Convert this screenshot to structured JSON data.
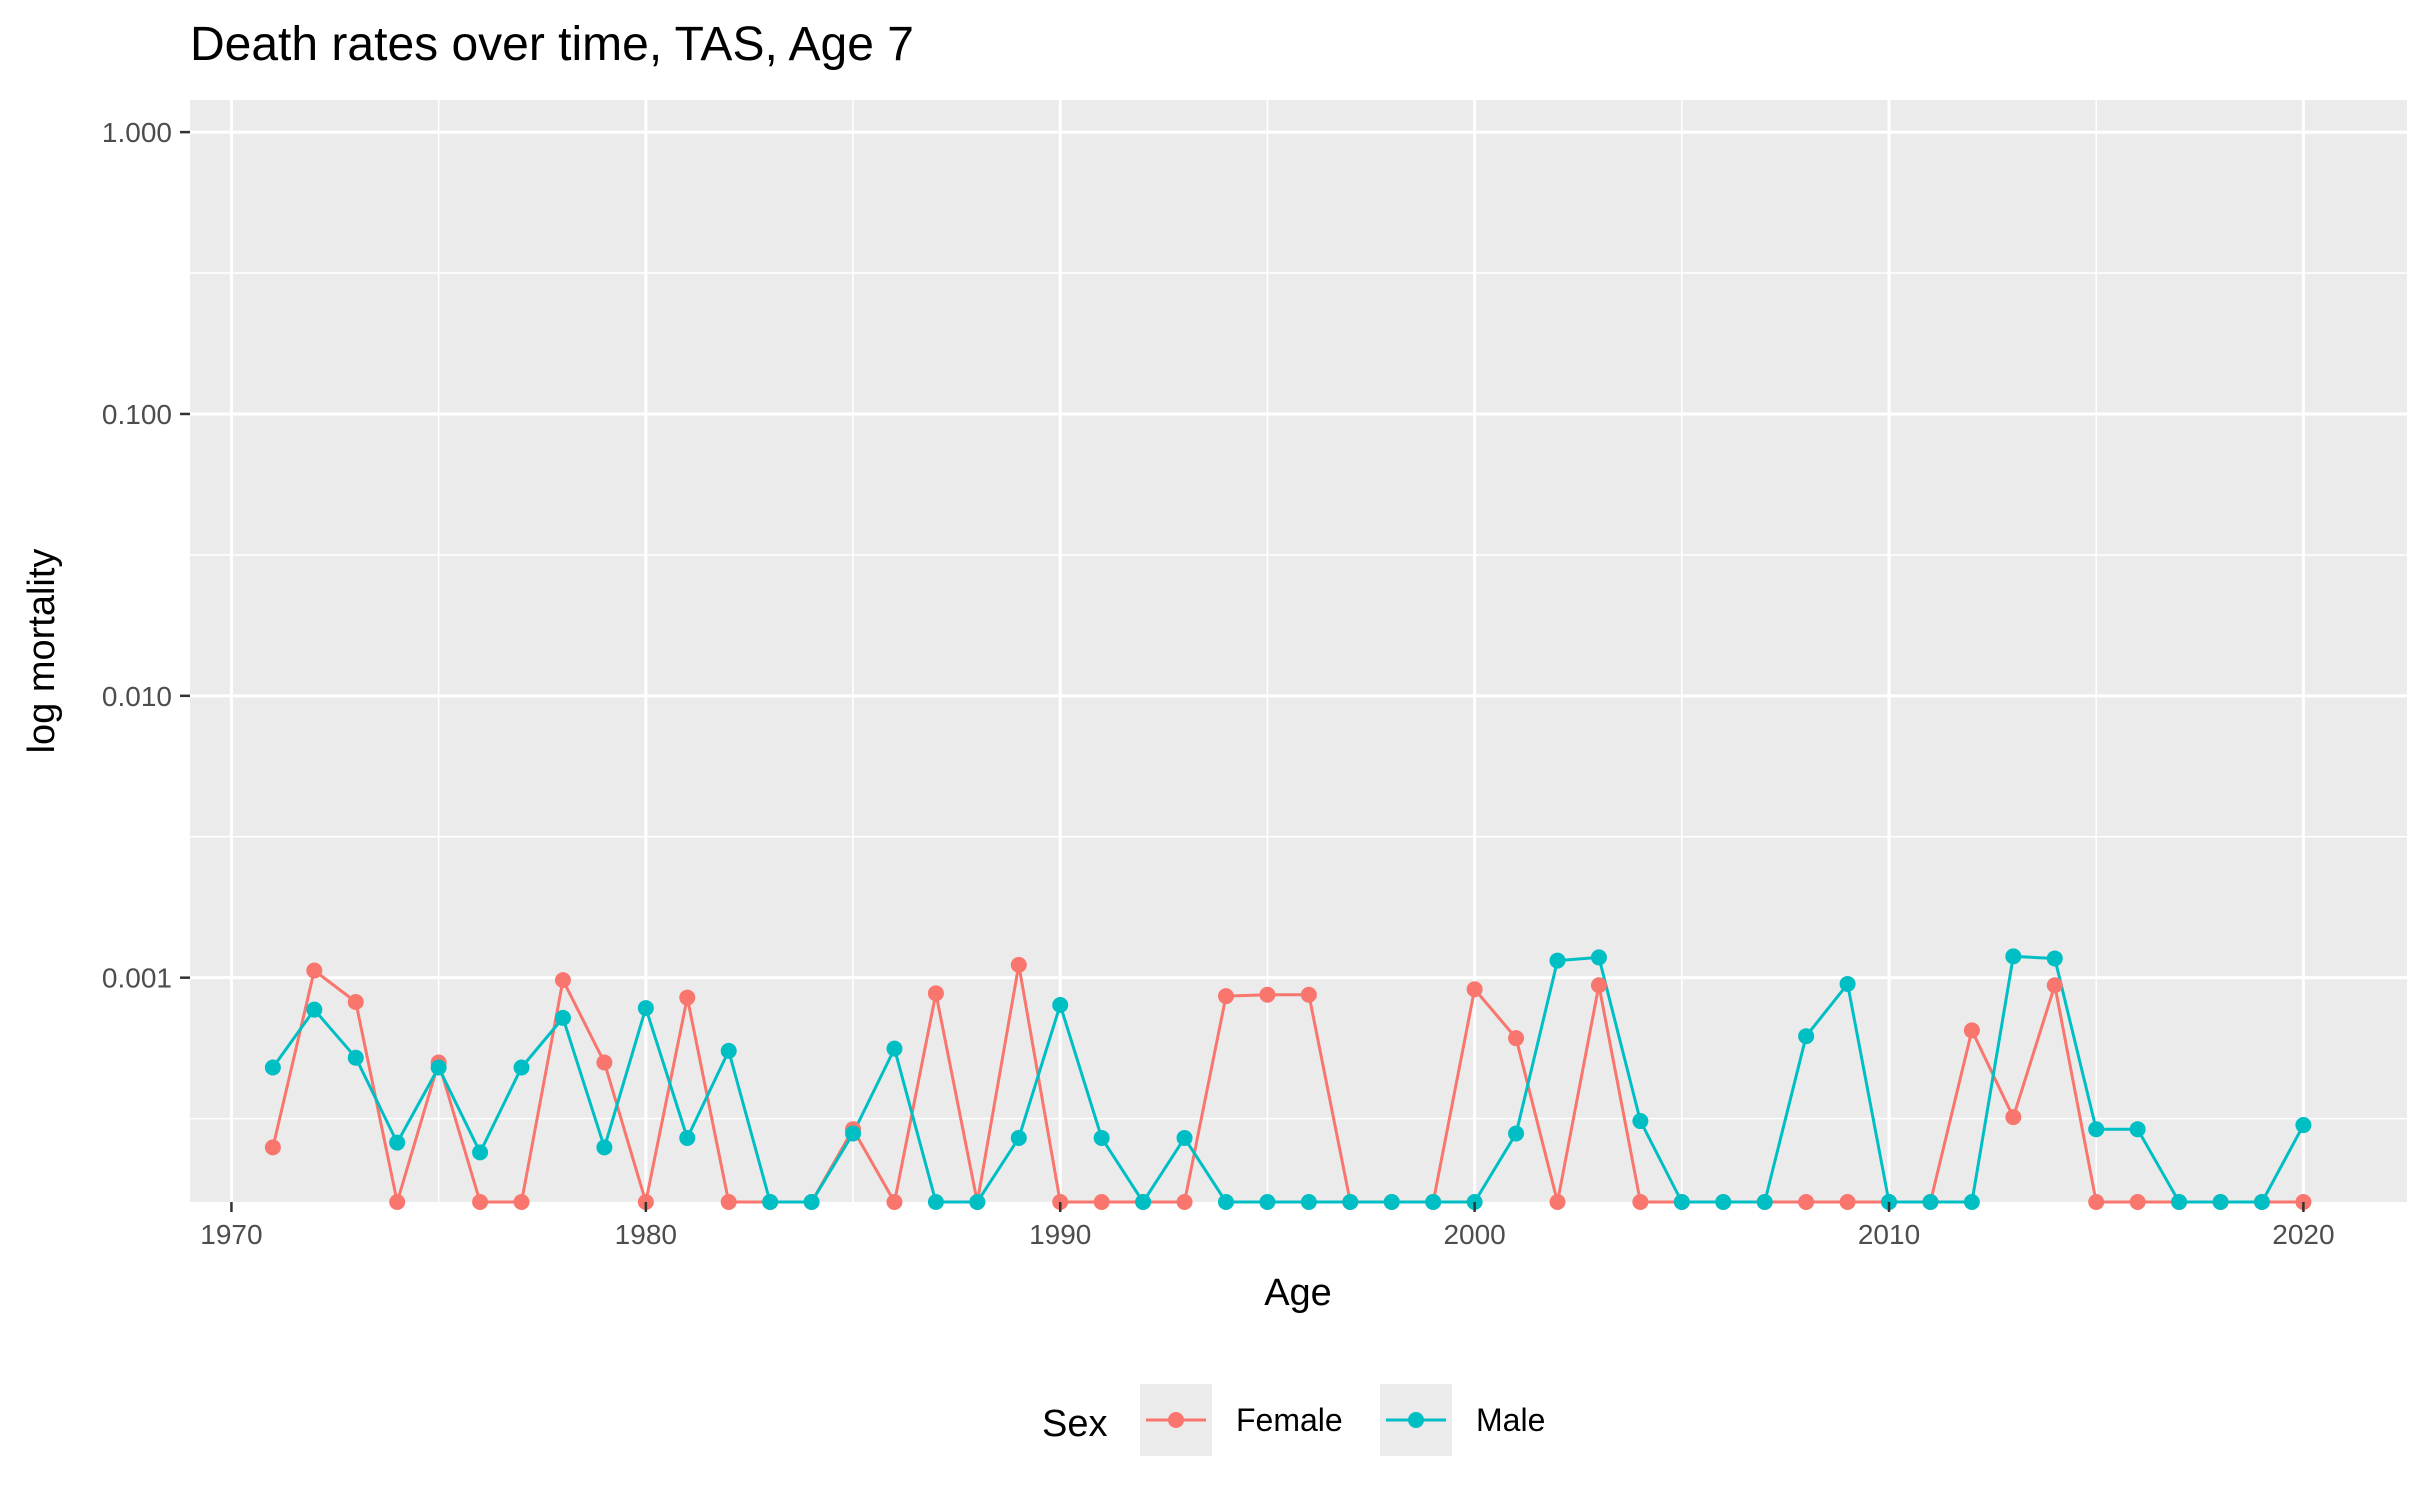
{
  "chart_data": {
    "type": "line",
    "title": "Death rates over time, TAS, Age 7",
    "xlabel": "Age",
    "ylabel": "log mortality",
    "y_scale": "log10",
    "x_ticks": [
      1970,
      1980,
      1990,
      2000,
      2010,
      2020
    ],
    "x_tick_labels": [
      "1970",
      "1980",
      "1990",
      "2000",
      "2010",
      "2020"
    ],
    "y_ticks": [
      0.001,
      0.01,
      0.1,
      1
    ],
    "y_tick_labels": [
      "0.001",
      "0.010",
      "0.100",
      "1.000"
    ],
    "xlim": [
      1969,
      2022.5
    ],
    "ylim": [
      0.00016,
      1.3
    ],
    "grid": true,
    "legend_title": "Sex",
    "legend_position": "bottom",
    "x": [
      1971,
      1972,
      1973,
      1974,
      1975,
      1976,
      1977,
      1978,
      1979,
      1980,
      1981,
      1982,
      1983,
      1984,
      1985,
      1986,
      1987,
      1988,
      1989,
      1990,
      1991,
      1992,
      1993,
      1994,
      1995,
      1996,
      1997,
      1998,
      1999,
      2000,
      2001,
      2002,
      2003,
      2004,
      2005,
      2006,
      2007,
      2008,
      2009,
      2010,
      2011,
      2012,
      2013,
      2014,
      2015,
      2016,
      2017,
      2018,
      2019,
      2020
    ],
    "series": [
      {
        "name": "Female",
        "color": "#F8766D",
        "values": [
          0.00025,
          0.00106,
          0.00082,
          0.00016,
          0.0005,
          0.00016,
          0.00016,
          0.00098,
          0.0005,
          0.00016,
          0.00085,
          0.00016,
          0.00016,
          0.00016,
          0.00029,
          0.00016,
          0.00088,
          0.00016,
          0.00111,
          0.00016,
          0.00016,
          0.00016,
          0.00016,
          0.00086,
          0.00087,
          0.00087,
          0.00016,
          0.00016,
          0.00016,
          0.00091,
          0.00061,
          0.00016,
          0.00094,
          0.00016,
          0.00016,
          0.00016,
          0.00016,
          0.00016,
          0.00016,
          0.00016,
          0.00016,
          0.00065,
          0.00032,
          0.00094,
          0.00016,
          0.00016,
          0.00016,
          0.00016,
          0.00016,
          0.00016
        ]
      },
      {
        "name": "Male",
        "color": "#00BFC4",
        "values": [
          0.00048,
          0.00077,
          0.00052,
          0.00026,
          0.00048,
          0.00024,
          0.00048,
          0.00072,
          0.00025,
          0.00078,
          0.00027,
          0.00055,
          0.00016,
          0.00016,
          0.00028,
          0.00056,
          0.00016,
          0.00016,
          0.00027,
          0.0008,
          0.00027,
          0.00016,
          0.00027,
          0.00016,
          0.00016,
          0.00016,
          0.00016,
          0.00016,
          0.00016,
          0.00016,
          0.00028,
          0.00115,
          0.00118,
          0.00031,
          0.00016,
          0.00016,
          0.00016,
          0.00062,
          0.00095,
          0.00016,
          0.00016,
          0.00016,
          0.00119,
          0.00117,
          0.00029,
          0.00029,
          0.00016,
          0.00016,
          0.00016,
          0.0003
        ]
      }
    ]
  }
}
